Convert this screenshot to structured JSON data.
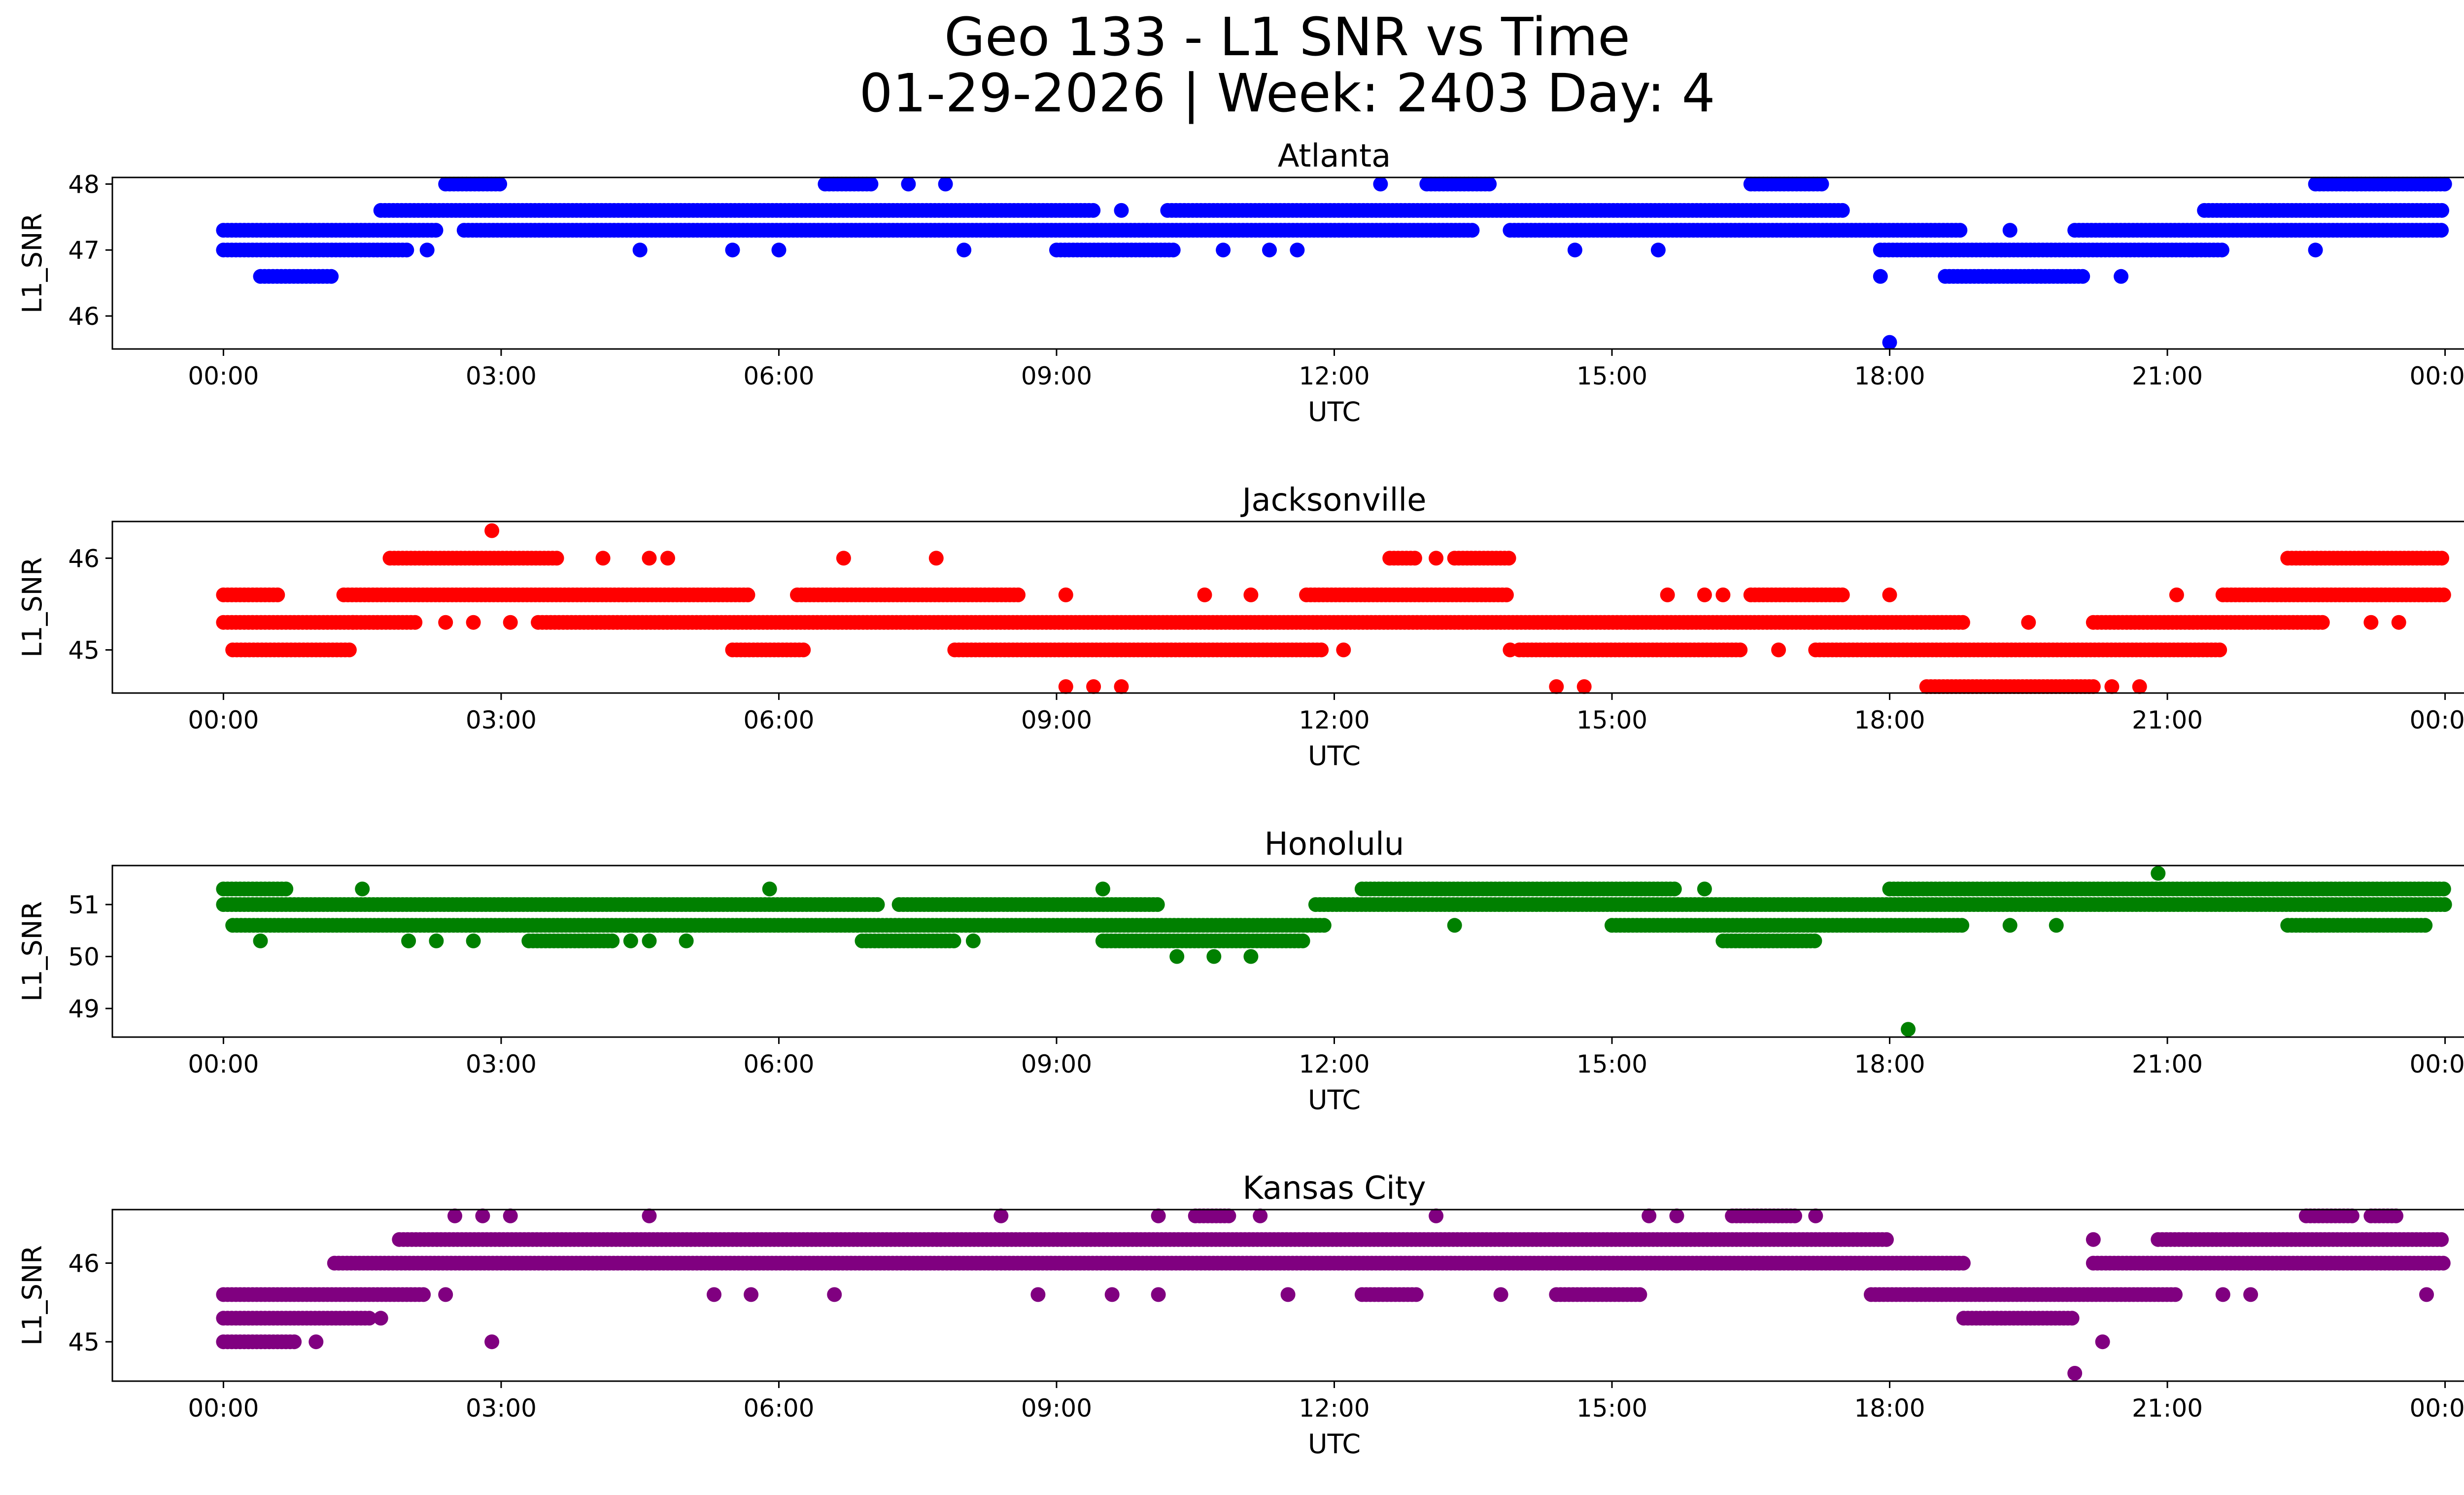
{
  "chart_data": {
    "type": "scatter",
    "title": "Geo 133 - L1 SNR vs Time",
    "subtitle": "01-29-2026 | Week: 2403 Day: 4",
    "x_tick_labels": [
      "00:00",
      "03:00",
      "06:00",
      "09:00",
      "12:00",
      "15:00",
      "18:00",
      "21:00",
      "00:00"
    ],
    "x_tick_hours": [
      0,
      3,
      6,
      9,
      12,
      15,
      18,
      21,
      24
    ],
    "xlim_hours": [
      -1.2,
      25.2
    ],
    "xlabel": "UTC",
    "ylabel": "L1_SNR",
    "panels": [
      {
        "name": "Atlanta",
        "color": "#0000ff",
        "ylim": [
          45.5,
          48.1
        ],
        "y_ticks": [
          46,
          47,
          48
        ],
        "y_tick_labels": [
          "46",
          "47",
          "48"
        ],
        "segments": [
          {
            "y": 47.3,
            "start": 0.0,
            "end": 2.3
          },
          {
            "y": 47.3,
            "start": 2.6,
            "end": 13.5
          },
          {
            "y": 47.3,
            "start": 13.9,
            "end": 18.8
          },
          {
            "y": 47.3,
            "start": 20.0,
            "end": 24.0
          },
          {
            "y": 47.0,
            "start": 0.0,
            "end": 2.0
          },
          {
            "y": 47.0,
            "start": 9.0,
            "end": 10.3
          },
          {
            "y": 47.0,
            "start": 17.9,
            "end": 21.6
          },
          {
            "y": 47.6,
            "start": 1.7,
            "end": 9.4
          },
          {
            "y": 47.6,
            "start": 10.2,
            "end": 17.5
          },
          {
            "y": 47.6,
            "start": 21.4,
            "end": 24.0
          },
          {
            "y": 46.6,
            "start": 0.4,
            "end": 1.2
          },
          {
            "y": 46.6,
            "start": 18.6,
            "end": 20.1
          },
          {
            "y": 48.0,
            "start": 2.4,
            "end": 3.0
          },
          {
            "y": 48.0,
            "start": 6.5,
            "end": 7.0
          },
          {
            "y": 48.0,
            "start": 13.0,
            "end": 13.7
          },
          {
            "y": 48.0,
            "start": 16.5,
            "end": 17.3
          },
          {
            "y": 48.0,
            "start": 22.6,
            "end": 24.0
          }
        ],
        "points": [
          {
            "x": 2.2,
            "y": 47.0
          },
          {
            "x": 4.5,
            "y": 47.0
          },
          {
            "x": 5.5,
            "y": 47.0
          },
          {
            "x": 6.0,
            "y": 47.0
          },
          {
            "x": 8.0,
            "y": 47.0
          },
          {
            "x": 10.8,
            "y": 47.0
          },
          {
            "x": 11.3,
            "y": 47.0
          },
          {
            "x": 11.6,
            "y": 47.0
          },
          {
            "x": 14.6,
            "y": 47.0
          },
          {
            "x": 15.5,
            "y": 47.0
          },
          {
            "x": 22.6,
            "y": 47.0
          },
          {
            "x": 7.4,
            "y": 48.0
          },
          {
            "x": 7.8,
            "y": 48.0
          },
          {
            "x": 12.5,
            "y": 48.0
          },
          {
            "x": 9.7,
            "y": 47.6
          },
          {
            "x": 19.3,
            "y": 47.3
          },
          {
            "x": 20.5,
            "y": 46.6
          },
          {
            "x": 17.9,
            "y": 46.6
          },
          {
            "x": 18.0,
            "y": 45.6
          }
        ]
      },
      {
        "name": "Jacksonville",
        "color": "#ff0000",
        "ylim": [
          44.53,
          46.4
        ],
        "y_ticks": [
          45,
          46
        ],
        "y_tick_labels": [
          "45",
          "46"
        ],
        "segments": [
          {
            "y": 45.3,
            "start": 0.0,
            "end": 2.1
          },
          {
            "y": 45.3,
            "start": 3.4,
            "end": 18.8
          },
          {
            "y": 45.3,
            "start": 20.2,
            "end": 22.7
          },
          {
            "y": 45.6,
            "start": 0.0,
            "end": 0.6
          },
          {
            "y": 45.6,
            "start": 1.3,
            "end": 5.7
          },
          {
            "y": 45.6,
            "start": 6.2,
            "end": 8.6
          },
          {
            "y": 45.6,
            "start": 11.7,
            "end": 13.9
          },
          {
            "y": 45.6,
            "start": 16.5,
            "end": 17.5
          },
          {
            "y": 45.6,
            "start": 21.6,
            "end": 24.0
          },
          {
            "y": 45.0,
            "start": 0.1,
            "end": 1.4
          },
          {
            "y": 45.0,
            "start": 5.5,
            "end": 6.3
          },
          {
            "y": 45.0,
            "start": 7.9,
            "end": 11.9
          },
          {
            "y": 45.0,
            "start": 14.0,
            "end": 16.4
          },
          {
            "y": 45.0,
            "start": 17.2,
            "end": 21.6
          },
          {
            "y": 46.0,
            "start": 1.8,
            "end": 3.6
          },
          {
            "y": 46.0,
            "start": 12.6,
            "end": 12.9
          },
          {
            "y": 46.0,
            "start": 13.3,
            "end": 13.9
          },
          {
            "y": 46.0,
            "start": 22.3,
            "end": 24.0
          },
          {
            "y": 44.6,
            "start": 18.4,
            "end": 20.2
          }
        ],
        "points": [
          {
            "x": 2.9,
            "y": 46.3
          },
          {
            "x": 4.1,
            "y": 46.0
          },
          {
            "x": 4.6,
            "y": 46.0
          },
          {
            "x": 4.8,
            "y": 46.0
          },
          {
            "x": 6.7,
            "y": 46.0
          },
          {
            "x": 7.7,
            "y": 46.0
          },
          {
            "x": 13.1,
            "y": 46.0
          },
          {
            "x": 9.1,
            "y": 45.6
          },
          {
            "x": 10.6,
            "y": 45.6
          },
          {
            "x": 11.1,
            "y": 45.6
          },
          {
            "x": 15.6,
            "y": 45.6
          },
          {
            "x": 16.0,
            "y": 45.6
          },
          {
            "x": 16.2,
            "y": 45.6
          },
          {
            "x": 18.0,
            "y": 45.6
          },
          {
            "x": 21.1,
            "y": 45.6
          },
          {
            "x": 1.4,
            "y": 45.3
          },
          {
            "x": 2.4,
            "y": 45.3
          },
          {
            "x": 2.7,
            "y": 45.3
          },
          {
            "x": 3.1,
            "y": 45.3
          },
          {
            "x": 19.5,
            "y": 45.3
          },
          {
            "x": 23.2,
            "y": 45.3
          },
          {
            "x": 23.5,
            "y": 45.3
          },
          {
            "x": 12.1,
            "y": 45.0
          },
          {
            "x": 13.9,
            "y": 45.0
          },
          {
            "x": 16.8,
            "y": 45.0
          },
          {
            "x": 9.1,
            "y": 44.6
          },
          {
            "x": 9.4,
            "y": 44.6
          },
          {
            "x": 9.7,
            "y": 44.6
          },
          {
            "x": 14.4,
            "y": 44.6
          },
          {
            "x": 14.7,
            "y": 44.6
          },
          {
            "x": 20.4,
            "y": 44.6
          },
          {
            "x": 20.7,
            "y": 44.6
          }
        ]
      },
      {
        "name": "Honolulu",
        "color": "#008000",
        "ylim": [
          48.45,
          51.75
        ],
        "y_ticks": [
          49,
          50,
          51
        ],
        "y_tick_labels": [
          "49",
          "50",
          "51"
        ],
        "segments": [
          {
            "y": 51.0,
            "start": 0.0,
            "end": 7.1
          },
          {
            "y": 51.0,
            "start": 7.3,
            "end": 10.1
          },
          {
            "y": 51.0,
            "start": 11.8,
            "end": 24.0
          },
          {
            "y": 50.6,
            "start": 0.1,
            "end": 11.9
          },
          {
            "y": 50.6,
            "start": 15.0,
            "end": 18.8
          },
          {
            "y": 50.6,
            "start": 22.3,
            "end": 23.8
          },
          {
            "y": 50.3,
            "start": 6.9,
            "end": 7.9
          },
          {
            "y": 50.3,
            "start": 9.5,
            "end": 11.7
          },
          {
            "y": 50.3,
            "start": 16.2,
            "end": 17.2
          },
          {
            "y": 50.3,
            "start": 3.3,
            "end": 4.2
          },
          {
            "y": 51.3,
            "start": 0.0,
            "end": 0.7
          },
          {
            "y": 51.3,
            "start": 12.3,
            "end": 15.7
          },
          {
            "y": 51.3,
            "start": 18.0,
            "end": 24.0
          }
        ],
        "points": [
          {
            "x": 1.5,
            "y": 51.3
          },
          {
            "x": 5.9,
            "y": 51.3
          },
          {
            "x": 9.5,
            "y": 51.3
          },
          {
            "x": 16.0,
            "y": 51.3
          },
          {
            "x": 20.9,
            "y": 51.6
          },
          {
            "x": 0.4,
            "y": 50.3
          },
          {
            "x": 2.0,
            "y": 50.3
          },
          {
            "x": 2.3,
            "y": 50.3
          },
          {
            "x": 2.7,
            "y": 50.3
          },
          {
            "x": 4.4,
            "y": 50.3
          },
          {
            "x": 4.6,
            "y": 50.3
          },
          {
            "x": 5.0,
            "y": 50.3
          },
          {
            "x": 8.1,
            "y": 50.3
          },
          {
            "x": 10.3,
            "y": 50.0
          },
          {
            "x": 10.7,
            "y": 50.0
          },
          {
            "x": 11.1,
            "y": 50.0
          },
          {
            "x": 13.3,
            "y": 50.6
          },
          {
            "x": 19.3,
            "y": 50.6
          },
          {
            "x": 19.8,
            "y": 50.6
          },
          {
            "x": 18.2,
            "y": 48.6
          }
        ]
      },
      {
        "name": "Kansas City",
        "color": "#800080",
        "ylim": [
          44.5,
          46.68
        ],
        "y_ticks": [
          45,
          46
        ],
        "y_tick_labels": [
          "45",
          "46"
        ],
        "segments": [
          {
            "y": 46.3,
            "start": 1.9,
            "end": 18.0
          },
          {
            "y": 46.3,
            "start": 20.9,
            "end": 24.0
          },
          {
            "y": 46.0,
            "start": 1.2,
            "end": 18.8
          },
          {
            "y": 46.0,
            "start": 20.2,
            "end": 24.0
          },
          {
            "y": 45.6,
            "start": 0.0,
            "end": 2.2
          },
          {
            "y": 45.6,
            "start": 12.3,
            "end": 12.9
          },
          {
            "y": 45.6,
            "start": 14.4,
            "end": 15.3
          },
          {
            "y": 45.6,
            "start": 17.8,
            "end": 21.1
          },
          {
            "y": 45.3,
            "start": 0.0,
            "end": 1.6
          },
          {
            "y": 45.3,
            "start": 18.8,
            "end": 20.0
          },
          {
            "y": 45.0,
            "start": 0.0,
            "end": 0.8
          },
          {
            "y": 46.6,
            "start": 16.3,
            "end": 17.0
          },
          {
            "y": 46.6,
            "start": 10.5,
            "end": 10.9
          },
          {
            "y": 46.6,
            "start": 22.5,
            "end": 23.0
          },
          {
            "y": 46.6,
            "start": 23.2,
            "end": 23.5
          }
        ],
        "points": [
          {
            "x": 2.5,
            "y": 46.6
          },
          {
            "x": 2.8,
            "y": 46.6
          },
          {
            "x": 3.1,
            "y": 46.6
          },
          {
            "x": 4.6,
            "y": 46.6
          },
          {
            "x": 8.4,
            "y": 46.6
          },
          {
            "x": 10.1,
            "y": 46.6
          },
          {
            "x": 11.2,
            "y": 46.6
          },
          {
            "x": 13.1,
            "y": 46.6
          },
          {
            "x": 15.4,
            "y": 46.6
          },
          {
            "x": 15.7,
            "y": 46.6
          },
          {
            "x": 17.2,
            "y": 46.6
          },
          {
            "x": 1.0,
            "y": 45.0
          },
          {
            "x": 2.9,
            "y": 45.0
          },
          {
            "x": 1.7,
            "y": 45.3
          },
          {
            "x": 2.4,
            "y": 45.6
          },
          {
            "x": 5.3,
            "y": 45.6
          },
          {
            "x": 5.7,
            "y": 45.6
          },
          {
            "x": 6.6,
            "y": 45.6
          },
          {
            "x": 8.8,
            "y": 45.6
          },
          {
            "x": 9.6,
            "y": 45.6
          },
          {
            "x": 10.1,
            "y": 45.6
          },
          {
            "x": 11.5,
            "y": 45.6
          },
          {
            "x": 13.8,
            "y": 45.6
          },
          {
            "x": 21.6,
            "y": 45.6
          },
          {
            "x": 21.9,
            "y": 45.6
          },
          {
            "x": 23.8,
            "y": 45.6
          },
          {
            "x": 20.2,
            "y": 46.3
          },
          {
            "x": 20.3,
            "y": 45.0
          },
          {
            "x": 20.0,
            "y": 44.6
          }
        ]
      }
    ]
  }
}
